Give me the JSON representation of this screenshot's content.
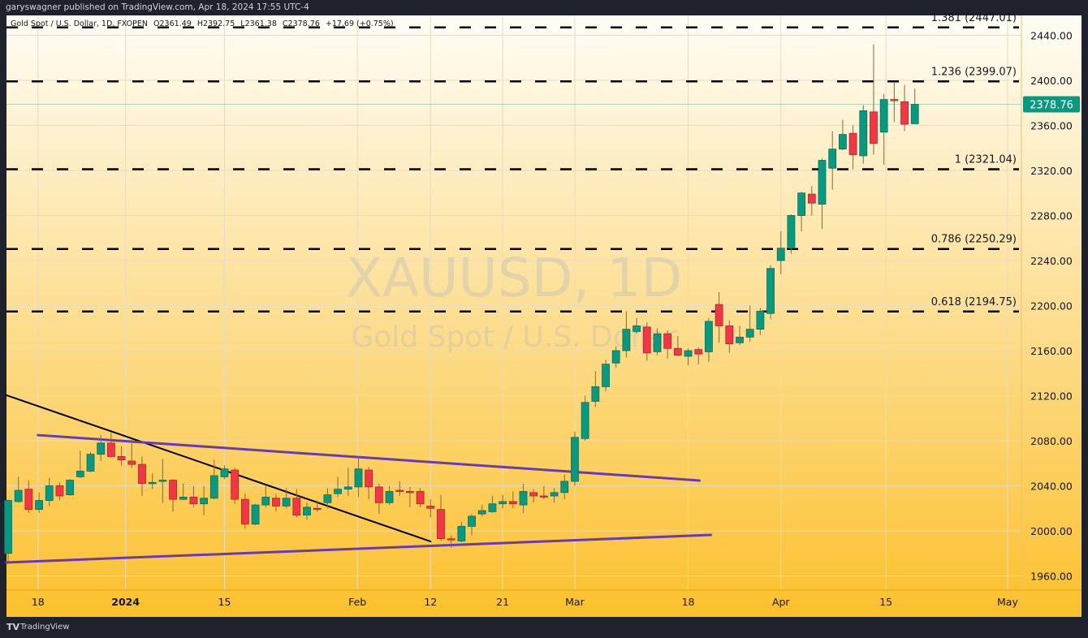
{
  "header": {
    "published": "garyswagner published on TradingView.com, Apr 18, 2024 17:55 UTC-4"
  },
  "legend": {
    "symbol": "Gold Spot / U.S. Dollar, 1D, FXOPEN",
    "open": "O2361.49",
    "high": "H2392.75",
    "low": "L2361.38",
    "close": "C2378.76",
    "change": "+17.69 (+0.75%)"
  },
  "watermark": {
    "ticker": "XAUUSD, 1D",
    "description": "Gold Spot / U.S. Dollar"
  },
  "footer": {
    "logo_mark": "TV",
    "brand": "TradingView"
  },
  "colors": {
    "up": "#089981",
    "down": "#f23645",
    "trendline": "#000000",
    "channel": "#673ab7",
    "fib": "#000000",
    "bg_top": "#fffdf6",
    "bg_bottom": "#fbc02d"
  },
  "chart_data": {
    "type": "candlestick",
    "title": "XAUUSD, 1D",
    "y_axis": {
      "ticks": [
        2440,
        2400,
        2360,
        2320,
        2280,
        2240,
        2200,
        2160,
        2120,
        2080,
        2040,
        2000,
        1960
      ],
      "range": [
        1937,
        2465
      ],
      "side": "right"
    },
    "x_axis": {
      "ticks": [
        "18",
        "2024",
        "15",
        "Feb",
        "12",
        "21",
        "Mar",
        "18",
        "Apr",
        "15",
        "May"
      ]
    },
    "grid": true,
    "last_price": "2378.76",
    "candles": [
      [
        1980,
        2028,
        1973,
        2027
      ],
      [
        2026,
        2048,
        2025,
        2036
      ],
      [
        2037,
        2045,
        2016,
        2019
      ],
      [
        2019,
        2034,
        2016,
        2027
      ],
      [
        2027,
        2047,
        2022,
        2040
      ],
      [
        2040,
        2043,
        2027,
        2031
      ],
      [
        2032,
        2046,
        2031,
        2045
      ],
      [
        2048,
        2071,
        2047,
        2053
      ],
      [
        2053,
        2070,
        2052,
        2068
      ],
      [
        2068,
        2085,
        2062,
        2078
      ],
      [
        2078,
        2087,
        2065,
        2066
      ],
      [
        2066,
        2075,
        2058,
        2063
      ],
      [
        2062,
        2081,
        2056,
        2059
      ],
      [
        2059,
        2066,
        2031,
        2042
      ],
      [
        2042,
        2051,
        2037,
        2043
      ],
      [
        2044,
        2064,
        2025,
        2045
      ],
      [
        2045,
        2046,
        2017,
        2028
      ],
      [
        2028,
        2042,
        2027,
        2030
      ],
      [
        2030,
        2040,
        2021,
        2024
      ],
      [
        2024,
        2040,
        2014,
        2029
      ],
      [
        2029,
        2063,
        2028,
        2049
      ],
      [
        2048,
        2058,
        2046,
        2055
      ],
      [
        2054,
        2056,
        2024,
        2028
      ],
      [
        2028,
        2033,
        2002,
        2006
      ],
      [
        2006,
        2024,
        2005,
        2023
      ],
      [
        2023,
        2040,
        2021,
        2030
      ],
      [
        2029,
        2033,
        2017,
        2022
      ],
      [
        2022,
        2038,
        2020,
        2029
      ],
      [
        2029,
        2037,
        2012,
        2014
      ],
      [
        2014,
        2025,
        2010,
        2021
      ],
      [
        2020,
        2027,
        2017,
        2019
      ],
      [
        2025,
        2038,
        2020,
        2032
      ],
      [
        2033,
        2048,
        2030,
        2037
      ],
      [
        2037,
        2056,
        2031,
        2039
      ],
      [
        2039,
        2066,
        2030,
        2055
      ],
      [
        2054,
        2057,
        2028,
        2039
      ],
      [
        2039,
        2042,
        2015,
        2025
      ],
      [
        2025,
        2040,
        2023,
        2035
      ],
      [
        2036,
        2044,
        2031,
        2035
      ],
      [
        2035,
        2039,
        2021,
        2034
      ],
      [
        2035,
        2038,
        2021,
        2024
      ],
      [
        2022,
        2028,
        2012,
        2020
      ],
      [
        2019,
        2032,
        1991,
        1993
      ],
      [
        1993,
        1996,
        1985,
        1992
      ],
      [
        1991,
        2008,
        1990,
        2004
      ],
      [
        2004,
        2015,
        1996,
        2013
      ],
      [
        2015,
        2023,
        2013,
        2018
      ],
      [
        2017,
        2031,
        2016,
        2024
      ],
      [
        2024,
        2032,
        2020,
        2026
      ],
      [
        2026,
        2035,
        2020,
        2024
      ],
      [
        2023,
        2042,
        2016,
        2035
      ],
      [
        2034,
        2037,
        2025,
        2031
      ],
      [
        2031,
        2040,
        2028,
        2030
      ],
      [
        2031,
        2038,
        2025,
        2034
      ],
      [
        2034,
        2050,
        2028,
        2044
      ],
      [
        2044,
        2088,
        2040,
        2083
      ],
      [
        2082,
        2120,
        2080,
        2114
      ],
      [
        2115,
        2142,
        2110,
        2128
      ],
      [
        2128,
        2152,
        2124,
        2148
      ],
      [
        2149,
        2164,
        2145,
        2160
      ],
      [
        2160,
        2195,
        2154,
        2179
      ],
      [
        2177,
        2189,
        2175,
        2182
      ],
      [
        2181,
        2185,
        2151,
        2158
      ],
      [
        2159,
        2180,
        2156,
        2175
      ],
      [
        2175,
        2178,
        2153,
        2162
      ],
      [
        2162,
        2173,
        2155,
        2156
      ],
      [
        2155,
        2162,
        2147,
        2160
      ],
      [
        2161,
        2163,
        2148,
        2157
      ],
      [
        2159,
        2189,
        2150,
        2186
      ],
      [
        2201,
        2212,
        2167,
        2182
      ],
      [
        2182,
        2187,
        2158,
        2166
      ],
      [
        2167,
        2182,
        2165,
        2172
      ],
      [
        2172,
        2200,
        2168,
        2179
      ],
      [
        2179,
        2198,
        2174,
        2195
      ],
      [
        2193,
        2236,
        2188,
        2233
      ],
      [
        2240,
        2266,
        2228,
        2251
      ],
      [
        2251,
        2281,
        2246,
        2280
      ],
      [
        2280,
        2301,
        2266,
        2300
      ],
      [
        2299,
        2306,
        2280,
        2291
      ],
      [
        2290,
        2331,
        2268,
        2329
      ],
      [
        2322,
        2355,
        2303,
        2339
      ],
      [
        2339,
        2365,
        2338,
        2352
      ],
      [
        2353,
        2360,
        2321,
        2334
      ],
      [
        2333,
        2378,
        2326,
        2373
      ],
      [
        2372,
        2432,
        2334,
        2344
      ],
      [
        2354,
        2388,
        2325,
        2383
      ],
      [
        2383,
        2399,
        2363,
        2382
      ],
      [
        2381,
        2396,
        2355,
        2361
      ],
      [
        2361.49,
        2392.75,
        2361.38,
        2378.76
      ]
    ],
    "candle_format": [
      "open",
      "high",
      "low",
      "close"
    ],
    "fib_levels": [
      {
        "ratio": "1.381",
        "price": 2447.01,
        "label": "1.381 (2447.01)"
      },
      {
        "ratio": "1.236",
        "price": 2399.07,
        "label": "1.236 (2399.07)"
      },
      {
        "ratio": "1",
        "price": 2321.04,
        "label": "1 (2321.04)"
      },
      {
        "ratio": "0.786",
        "price": 2250.29,
        "label": "0.786 (2250.29)"
      },
      {
        "ratio": "0.618",
        "price": 2194.75,
        "label": "0.618 (2194.75)"
      }
    ],
    "trendlines": [
      {
        "name": "descending-trendline",
        "color": "#000000",
        "from_price": 2120.4,
        "to_price": 1990.6
      },
      {
        "name": "channel-upper",
        "color": "#673ab7",
        "from_price": 2085,
        "to_price": 2044.7
      },
      {
        "name": "channel-lower",
        "color": "#673ab7",
        "from_price": 1971.9,
        "to_price": 1996.4
      }
    ]
  }
}
